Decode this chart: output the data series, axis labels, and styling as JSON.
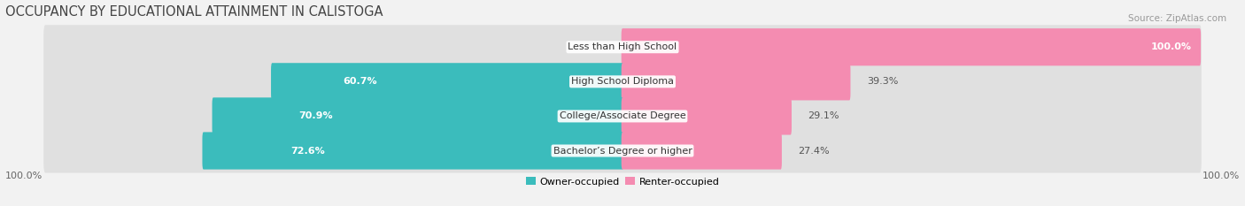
{
  "title": "OCCUPANCY BY EDUCATIONAL ATTAINMENT IN CALISTOGA",
  "source": "Source: ZipAtlas.com",
  "categories": [
    "Less than High School",
    "High School Diploma",
    "College/Associate Degree",
    "Bachelor’s Degree or higher"
  ],
  "owner_values": [
    0.0,
    60.7,
    70.9,
    72.6
  ],
  "renter_values": [
    100.0,
    39.3,
    29.1,
    27.4
  ],
  "owner_color": "#3bbcbc",
  "renter_color": "#f48cb1",
  "background_color": "#f2f2f2",
  "bar_background": "#e0e0e0",
  "title_fontsize": 10.5,
  "source_fontsize": 7.5,
  "label_fontsize": 8,
  "bar_height": 0.68,
  "legend_owner": "Owner-occupied",
  "legend_renter": "Renter-occupied",
  "axis_label_left": "100.0%",
  "axis_label_right": "100.0%"
}
